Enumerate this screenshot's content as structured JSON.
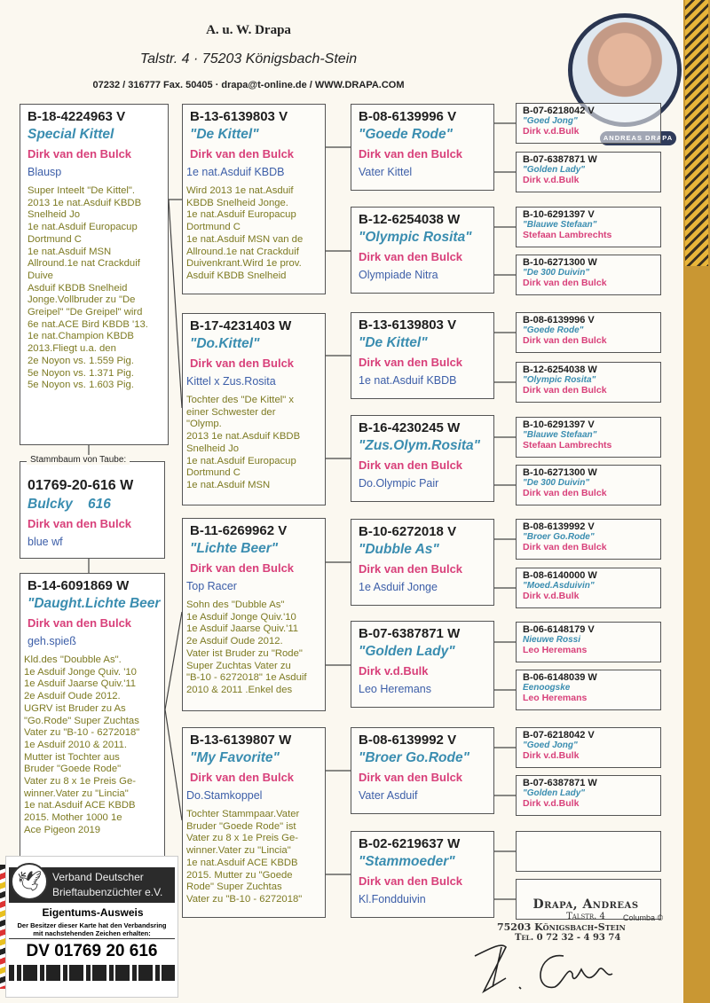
{
  "header": {
    "name": "A. u. W. Drapa",
    "address": "Talstr. 4  ·  75203 Königsbach-Stein",
    "contact": "07232 / 316777 Fax. 50405  ·  drapa@t-online.de / WWW.DRAPA.COM",
    "badge": "ANDREAS DRAPA"
  },
  "subject": {
    "legend": "Stammbaum von Taube:",
    "ring": "01769-20-616 W",
    "name": "Bulcky    616",
    "breeder": "Dirk van den Bulck",
    "color": "blue  wf"
  },
  "sire": {
    "ring": "B-18-4224963 V",
    "name": "Special Kittel",
    "breeder": "Dirk van den Bulck",
    "color": "Blausp",
    "notes": "Super Inteelt \"De Kittel\".\n2013 1e nat.Asduif KBDB\nSnelheid Jo\n1e nat.Asduif Europacup\nDortmund C\n1e nat.Asduif MSN\nAllround.1e nat Crackduif\nDuive\nAsduif KBDB Snelheid\nJonge.Vollbruder zu \"De\nGreipel\" \"De Greipel\" wird\n6e nat.ACE Bird KBDB '13.\n1e nat.Champion KBDB\n2013.Fliegt u.a. den\n2e Noyon vs. 1.559 Pig.\n5e Noyon vs. 1.371 Pig.\n5e Noyon vs. 1.603 Pig."
  },
  "dam": {
    "ring": "B-14-6091869 W",
    "name": "\"Daught.Lichte Beer",
    "breeder": "Dirk van den Bulck",
    "color": "geh.spieß",
    "notes": "Kld.des \"Doubble As\".\n1e Asduif Jonge Quiv. '10\n1e Asduif Jaarse Quiv.'11\n2e Asduif Oude 2012.\nUGRV ist Bruder zu As\n\"Go.Rode\" Super Zuchtas\nVater zu \"B-10 - 6272018\"\n1e Asduif 2010 & 2011.\nMutter ist Tochter aus\nBruder \"Goede Rode\"\nVater zu 8 x 1e  Preis Ge-\nwinner.Vater zu \"Lincia\"\n1e nat.Asduif ACE KBDB \n2015. Mother  1000 1e\nAce Pigeon 2019"
  },
  "grandparents": [
    {
      "ring": "B-13-6139803 V",
      "name": "\"De Kittel\"",
      "breeder": "Dirk van den Bulck",
      "color": "1e nat.Asduif KBDB",
      "notes": "Wird 2013 1e nat.Asduif\nKBDB Snelheid Jonge.\n1e nat.Asduif Europacup\nDortmund C\n1e nat.Asduif MSN van de\nAllround.1e nat Crackduif\nDuivenkrant.Wird 1e prov.\nAsduif KBDB Snelheid"
    },
    {
      "ring": "B-17-4231403 W",
      "name": "\"Do.Kittel\"",
      "breeder": "Dirk van den Bulck",
      "color": "Kittel x Zus.Rosita",
      "notes": "Tochter des \"De Kittel\" x\neiner Schwester der\n\"Olymp.\n2013 1e nat.Asduif KBDB\nSnelheid Jo\n1e nat.Asduif Europacup\nDortmund C\n1e nat.Asduif MSN"
    },
    {
      "ring": "B-11-6269962 V",
      "name": "\"Lichte Beer\"",
      "breeder": "Dirk van den Bulck",
      "color": "Top Racer",
      "notes": "Sohn des \"Dubble As\"\n1e Asduif Jonge  Quiv.'10\n1e Asduif Jaarse Quiv.'11\n2e Asduif Oude 2012.\nVater ist Bruder zu \"Rode\"\nSuper Zuchtas Vater zu\n\"B-10 - 6272018\" 1e Asduif\n2010 & 2011 .Enkel des"
    },
    {
      "ring": "B-13-6139807 W",
      "name": "\"My Favorite\"",
      "breeder": "Dirk van den Bulck",
      "color": "Do.Stamkoppel",
      "notes": "Tochter Stammpaar.Vater\nBruder \"Goede Rode\" ist\nVater zu 8 x 1e  Preis Ge-\nwinner.Vater zu \"Lincia\"\n1e nat.Asduif ACE KBDB\n2015. Mutter zu \"Goede\nRode\" Super Zuchtas\nVater zu \"B-10 - 6272018\""
    }
  ],
  "great_grandparents": [
    {
      "ring": "B-08-6139996 V",
      "name": "\"Goede Rode\"",
      "breeder": "Dirk van den Bulck",
      "color": "Vater Kittel"
    },
    {
      "ring": "B-12-6254038 W",
      "name": "\"Olympic Rosita\"",
      "breeder": "Dirk van den Bulck",
      "color": "Olympiade Nitra"
    },
    {
      "ring": "B-13-6139803 V",
      "name": "\"De Kittel\"",
      "breeder": "Dirk van den Bulck",
      "color": "1e nat.Asduif KBDB"
    },
    {
      "ring": "B-16-4230245 W",
      "name": "\"Zus.Olym.Rosita\"",
      "breeder": "Dirk van den Bulck",
      "color": "Do.Olympic Pair"
    },
    {
      "ring": "B-10-6272018 V",
      "name": "\"Dubble As\"",
      "breeder": "Dirk van den Bulck",
      "color": "1e Asduif Jonge"
    },
    {
      "ring": "B-07-6387871 W",
      "name": "\"Golden Lady\"",
      "breeder": "Dirk v.d.Bulk",
      "color": "Leo Heremans"
    },
    {
      "ring": "B-08-6139992 V",
      "name": "\"Broer Go.Rode\"",
      "breeder": "Dirk van den Bulck",
      "color": "Vater Asduif"
    },
    {
      "ring": "B-02-6219637 W",
      "name": "\"Stammoeder\"",
      "breeder": "Dirk van den Bulck",
      "color": "Kl.Fondduivin"
    }
  ],
  "great_great_grandparents": [
    {
      "ring": "B-07-6218042 V",
      "name": "\"Goed Jong\"",
      "breeder": "Dirk v.d.Bulk"
    },
    {
      "ring": "B-07-6387871 W",
      "name": "\"Golden Lady\"",
      "breeder": "Dirk v.d.Bulk"
    },
    {
      "ring": "B-10-6291397 V",
      "name": "\"Blauwe Stefaan\"",
      "breeder": "Stefaan Lambrechts"
    },
    {
      "ring": "B-10-6271300 W",
      "name": "\"De 300 Duivin\"",
      "breeder": "Dirk van den Bulck"
    },
    {
      "ring": "B-08-6139996 V",
      "name": "\"Goede Rode\"",
      "breeder": "Dirk van den Bulck"
    },
    {
      "ring": "B-12-6254038 W",
      "name": "\"Olympic Rosita\"",
      "breeder": "Dirk van den Bulck"
    },
    {
      "ring": "B-10-6291397 V",
      "name": "\"Blauwe Stefaan\"",
      "breeder": "Stefaan Lambrechts"
    },
    {
      "ring": "B-10-6271300 W",
      "name": "\"De 300 Duivin\"",
      "breeder": "Dirk van den Bulck"
    },
    {
      "ring": "B-08-6139992 V",
      "name": "\"Broer Go.Rode\"",
      "breeder": "Dirk van den Bulck"
    },
    {
      "ring": "B-08-6140000 W",
      "name": "\"Moed.Asduivin\"",
      "breeder": "Dirk v.d.Bulk"
    },
    {
      "ring": "B-06-6148179 V",
      "name": "Nieuwe Rossi",
      "breeder": "Leo Heremans"
    },
    {
      "ring": "B-06-6148039 W",
      "name": "Eenoogske",
      "breeder": "Leo  Heremans"
    },
    {
      "ring": "B-07-6218042 V",
      "name": "\"Goed Jong\"",
      "breeder": "Dirk v.d.Bulk"
    },
    {
      "ring": "B-07-6387871 W",
      "name": "\"Golden Lady\"",
      "breeder": "Dirk v.d.Bulk"
    },
    {
      "ring": "",
      "name": "",
      "breeder": ""
    },
    {
      "ring": "",
      "name": "",
      "breeder": ""
    }
  ],
  "card": {
    "org": "Verband Deutscher\nBrieftaubenzüchter e.V.",
    "title": "Eigentums-Ausweis",
    "subtitle": "Der Besitzer dieser Karte hat den Verbandsring\nmit nachstehenden Zeichen erhalten:",
    "ring": "DV 01769 20 616"
  },
  "stamp": {
    "name": "Drapa, Andreas",
    "street": "Talstr. 4",
    "city": "75203 Königsbach-Stein",
    "tel": "Tel. 0 72 32 - 4 93 74",
    "mark": "Columba ©"
  },
  "colors": {
    "ring": "#1e1e1e",
    "pigeon_name": "#3a8db0",
    "breeder": "#d8407a",
    "color_field": "#3c5ea8",
    "notes": "#7d7a22",
    "side_stripe": "#c99733"
  }
}
